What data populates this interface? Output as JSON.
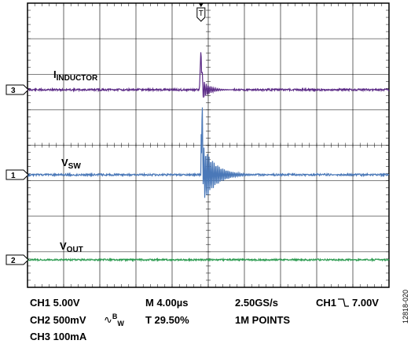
{
  "chart_data": {
    "type": "line",
    "channels": [
      {
        "id": "3",
        "name": "IINDUCTOR",
        "label_main": "I",
        "label_sub": "INDUCTOR",
        "color": "#5b2a86",
        "trace": "inductor"
      },
      {
        "id": "1",
        "name": "VSW",
        "label_main": "V",
        "label_sub": "SW",
        "color": "#4a78b8",
        "trace": "switch"
      },
      {
        "id": "2",
        "name": "VOUT",
        "label_main": "V",
        "label_sub": "OUT",
        "color": "#2e9c52",
        "trace": "flat"
      }
    ],
    "trigger_marker": "T",
    "grid": {
      "divisions_x": 10,
      "divisions_y": 8,
      "shown": true
    },
    "events_div": [
      4.8,
      10.25
    ]
  },
  "footer": {
    "row1": {
      "ch1": "CH1 5.00V",
      "time": "M 4.00µs",
      "rate": "2.50GS/s",
      "trig_ch": "CH1",
      "trig_level": "7.00V"
    },
    "row2": {
      "ch2": "CH2 500mV",
      "bw": "B",
      "bw_sub": "W",
      "trig_pos": "T 29.50%",
      "points": "1M POINTS"
    },
    "row3": {
      "ch3": "CH3 100mA"
    }
  },
  "figure_id": "12818-020"
}
